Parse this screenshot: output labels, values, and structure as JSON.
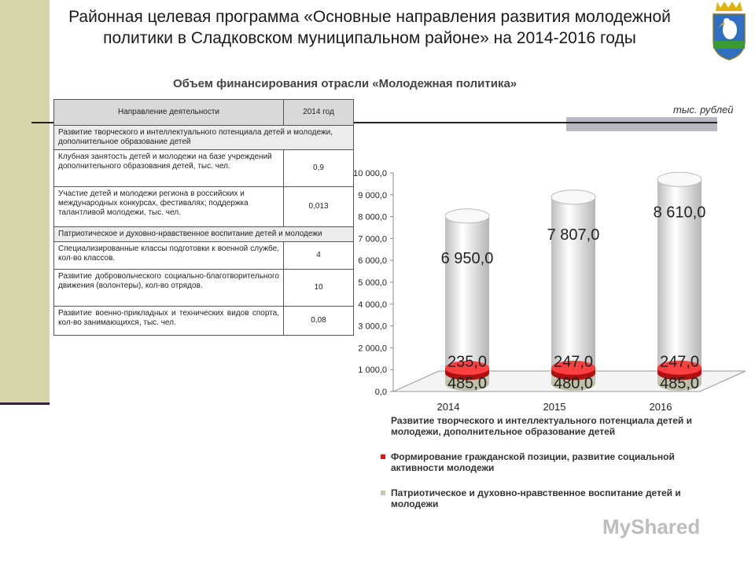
{
  "title": "Районная целевая программа «Основные направления развития молодежной политики в Сладковском муниципальном районе» на 2014-2016 годы",
  "subtitle": "Объем финансирования отрасли «Молодежная политика»",
  "units": "тыс. рублей",
  "table": {
    "header": [
      "Направление деятельности",
      "2014 год"
    ],
    "sections": [
      {
        "title": "Развитие творческого и интеллектуального потенциала детей и молодежи, дополнительное образование детей",
        "rows": [
          {
            "label": "Клубная занятость детей и молодежи на базе учреждений дополнительного образования детей, тыс. чел.",
            "value": "0,9"
          },
          {
            "label": "Участие детей и молодежи региона в российских и международных конкурсах, фестивалях; поддержка талантливой молодежи, тыс. чел.",
            "value": "0,013"
          }
        ]
      },
      {
        "title": "Патриотическое и духовно-нравственное воспитание детей и молодежи",
        "rows": [
          {
            "label": "Специализированные классы подготовки к военной службе, кол-во классов.",
            "value": "4"
          },
          {
            "label": "Развитие добровольческого социально-благотворительного движения (волонтеры), кол-во отрядов.",
            "value": "10"
          },
          {
            "label": "Развитие военно-прикладных и технических видов спорта, кол-во занимающихся, тыс. чел.",
            "value": "0,08"
          }
        ]
      }
    ]
  },
  "chart_data": {
    "type": "bar",
    "stacked": true,
    "style": "3d-cylinder",
    "categories": [
      "2014",
      "2015",
      "2016"
    ],
    "series": [
      {
        "name": "Патриотическое и духовно-нравственное воспитание детей и молодежи",
        "values": [
          485.0,
          480.0,
          485.0
        ],
        "labels": [
          "485,0",
          "480,0",
          "485,0"
        ],
        "color": "#c8c8b0"
      },
      {
        "name": "Формирование гражданской позиции, развитие социальной активности молодежи",
        "values": [
          235.0,
          247.0,
          247.0
        ],
        "labels": [
          "235,0",
          "247,0",
          "247,0"
        ],
        "color": "#e01818"
      },
      {
        "name": "Развитие творческого и интеллектуального потенциала детей и молодежи, дополнительное образование детей",
        "values": [
          6950.0,
          7807.0,
          8610.0
        ],
        "labels": [
          "6 950,0",
          "7 807,0",
          "8 610,0"
        ],
        "color": "#eeeeee"
      }
    ],
    "yticks": [
      "0,0",
      "1 000,0",
      "2 000,0",
      "3 000,0",
      "4 000,0",
      "5 000,0",
      "6 000,0",
      "7 000,0",
      "8 000,0",
      "9 000,0",
      "10 000,0"
    ],
    "ylim": [
      0,
      10000
    ],
    "legend_position": "bottom"
  },
  "watermark": "MyShared"
}
